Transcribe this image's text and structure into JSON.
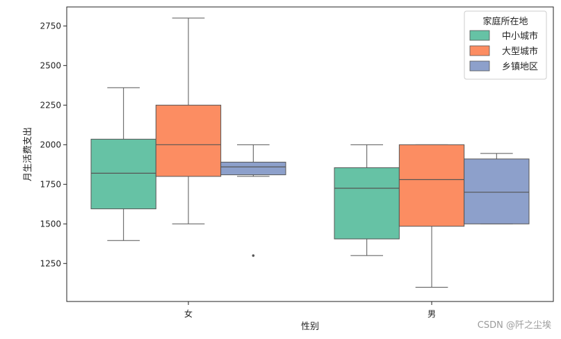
{
  "chart_data": {
    "type": "box",
    "xlabel": "性别",
    "ylabel": "月生活费支出",
    "categories": [
      "女",
      "男"
    ],
    "ylim": [
      1010,
      2870
    ],
    "yticks": [
      1250,
      1500,
      1750,
      2000,
      2250,
      2500,
      2750
    ],
    "legend": {
      "title": "家庭所在地",
      "position": "top-right"
    },
    "grid": false,
    "series": [
      {
        "name": "中小城市",
        "color": "#66c2a5",
        "boxes": [
          {
            "whislo": 1395,
            "q1": 1595,
            "med": 1820,
            "q3": 2035,
            "whishi": 2360,
            "fliers": []
          },
          {
            "whislo": 1300,
            "q1": 1405,
            "med": 1725,
            "q3": 1855,
            "whishi": 2000,
            "fliers": []
          }
        ]
      },
      {
        "name": "大型城市",
        "color": "#fc8d62",
        "boxes": [
          {
            "whislo": 1500,
            "q1": 1800,
            "med": 2000,
            "q3": 2250,
            "whishi": 2800,
            "fliers": []
          },
          {
            "whislo": 1100,
            "q1": 1485,
            "med": 1780,
            "q3": 2000,
            "whishi": 2000,
            "fliers": []
          }
        ]
      },
      {
        "name": "乡镇地区",
        "color": "#8da0cb",
        "boxes": [
          {
            "whislo": 1800,
            "q1": 1810,
            "med": 1860,
            "q3": 1890,
            "whishi": 2000,
            "fliers": [
              1300
            ]
          },
          {
            "whislo": 1500,
            "q1": 1500,
            "med": 1700,
            "q3": 1910,
            "whishi": 1945,
            "fliers": []
          }
        ]
      }
    ]
  },
  "watermark": "CSDN @阡之尘埃"
}
